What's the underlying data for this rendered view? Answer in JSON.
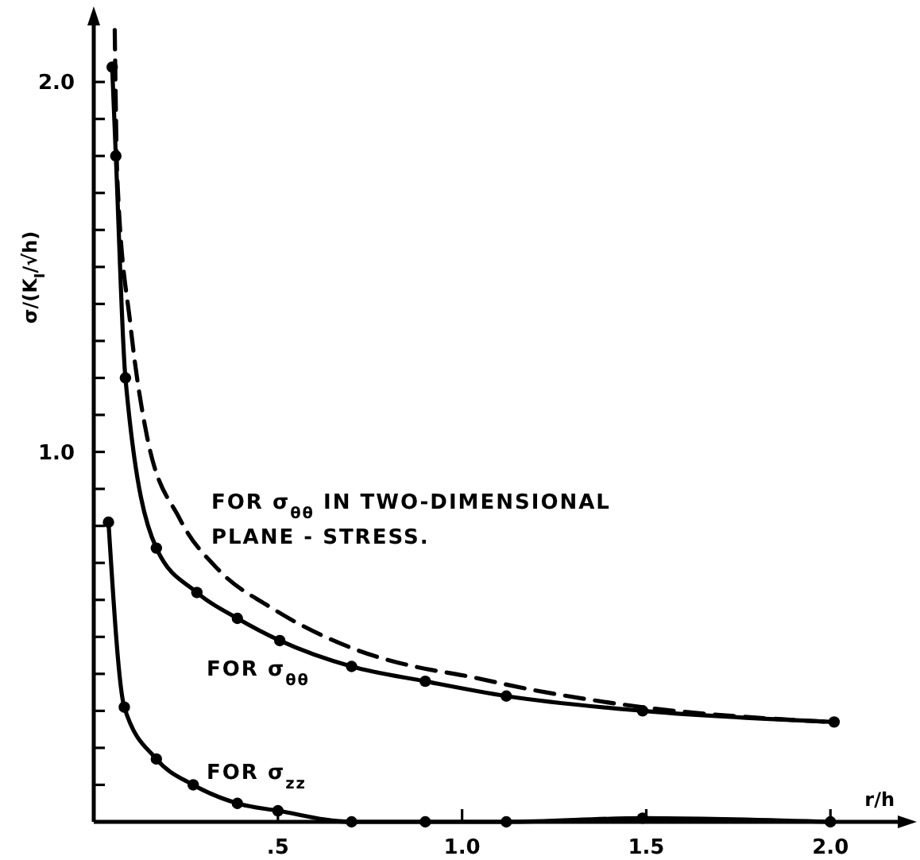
{
  "chart_data": {
    "type": "line",
    "xlabel": "r/h",
    "ylabel": "σ/(K$_{I}$/√h)",
    "xlim": [
      0,
      2.2
    ],
    "ylim": [
      0,
      2.17
    ],
    "xticks": [
      {
        "value": 0.5,
        "label": ".5"
      },
      {
        "value": 1.0,
        "label": "1.0"
      },
      {
        "value": 1.5,
        "label": "1.5"
      },
      {
        "value": 2.0,
        "label": "2.0"
      }
    ],
    "yticks": [
      {
        "value": 0.1,
        "label": null
      },
      {
        "value": 0.2,
        "label": null
      },
      {
        "value": 0.3,
        "label": null
      },
      {
        "value": 0.4,
        "label": null
      },
      {
        "value": 0.5,
        "label": null
      },
      {
        "value": 0.6,
        "label": null
      },
      {
        "value": 0.7,
        "label": null
      },
      {
        "value": 0.8,
        "label": null
      },
      {
        "value": 0.9,
        "label": null
      },
      {
        "value": 1.0,
        "label": "1.0"
      },
      {
        "value": 1.1,
        "label": null
      },
      {
        "value": 1.2,
        "label": null
      },
      {
        "value": 1.3,
        "label": null
      },
      {
        "value": 1.4,
        "label": null
      },
      {
        "value": 1.5,
        "label": null
      },
      {
        "value": 1.6,
        "label": null
      },
      {
        "value": 1.7,
        "label": null
      },
      {
        "value": 1.8,
        "label": null
      },
      {
        "value": 1.9,
        "label": null
      },
      {
        "value": 2.0,
        "label": "2.0"
      }
    ],
    "series": [
      {
        "name": "FOR σ$_{θθ}$ IN TWO-DIMENSIONAL\nPLANE - STRESS.",
        "color": "#000000",
        "line_style": "dashed",
        "marker": "none",
        "x": [
          0.057,
          0.064,
          0.1,
          0.145,
          0.233,
          0.34,
          0.48,
          0.7,
          0.92,
          0.98,
          1.2,
          1.49,
          2.0
        ],
        "values": [
          2.14,
          1.74,
          1.34,
          1.04,
          0.82,
          0.68,
          0.58,
          0.47,
          0.41,
          0.4,
          0.355,
          0.31,
          0.27
        ]
      },
      {
        "name": "FOR σ$_{θθ}$",
        "color": "#000000",
        "line_style": "solid",
        "marker": "circle",
        "x": [
          0.05,
          0.06,
          0.086,
          0.17,
          0.28,
          0.39,
          0.505,
          0.7,
          0.9,
          1.12,
          1.49,
          2.01
        ],
        "values": [
          2.04,
          1.8,
          1.2,
          0.74,
          0.62,
          0.55,
          0.49,
          0.42,
          0.38,
          0.34,
          0.3,
          0.27
        ]
      },
      {
        "name": "FOR σ$_{zz}$",
        "color": "#000000",
        "line_style": "solid",
        "marker": "circle",
        "x": [
          0.04,
          0.083,
          0.17,
          0.27,
          0.39,
          0.5,
          0.7,
          0.9,
          1.12,
          1.49,
          2.0
        ],
        "values": [
          0.81,
          0.31,
          0.17,
          0.1,
          0.05,
          0.03,
          0,
          0,
          0,
          0.01,
          0
        ]
      }
    ]
  }
}
